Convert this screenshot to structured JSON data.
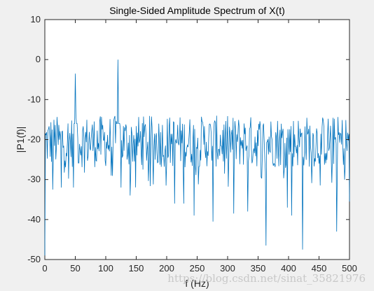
{
  "chart_data": {
    "type": "line",
    "title": "Single-Sided Amplitude Spectrum of X(t)",
    "xlabel": "f (Hz)",
    "ylabel": "|P1(f)|",
    "xlim": [
      0,
      500
    ],
    "ylim": [
      -50,
      10
    ],
    "xticks": [
      0,
      50,
      100,
      150,
      200,
      250,
      300,
      350,
      400,
      450,
      500
    ],
    "yticks": [
      -50,
      -40,
      -30,
      -20,
      -10,
      0,
      10
    ],
    "grid": false,
    "line_color": "#0072bd",
    "series": [
      {
        "x_step": 1,
        "peaks": [
          {
            "x": 50,
            "y": -3.5
          },
          {
            "x": 120,
            "y": 0.0
          }
        ],
        "dips": [
          {
            "x": 0,
            "y": -49
          },
          {
            "x": 13,
            "y": -32.5
          },
          {
            "x": 27,
            "y": -32
          },
          {
            "x": 47,
            "y": -32
          },
          {
            "x": 125,
            "y": -32
          },
          {
            "x": 140,
            "y": -34
          },
          {
            "x": 213,
            "y": -36
          },
          {
            "x": 228,
            "y": -36
          },
          {
            "x": 245,
            "y": -39
          },
          {
            "x": 276,
            "y": -40.5
          },
          {
            "x": 310,
            "y": -38.5
          },
          {
            "x": 333,
            "y": -38
          },
          {
            "x": 363,
            "y": -46.5
          },
          {
            "x": 398,
            "y": -37
          },
          {
            "x": 405,
            "y": -39
          },
          {
            "x": 423,
            "y": -47.5
          },
          {
            "x": 479,
            "y": -43
          },
          {
            "x": 500,
            "y": -35.5
          }
        ],
        "baseline": -21,
        "noise_range": [
          -27,
          -14
        ]
      }
    ]
  },
  "watermark": "https://blog.csdn.net/sinat_35821976"
}
